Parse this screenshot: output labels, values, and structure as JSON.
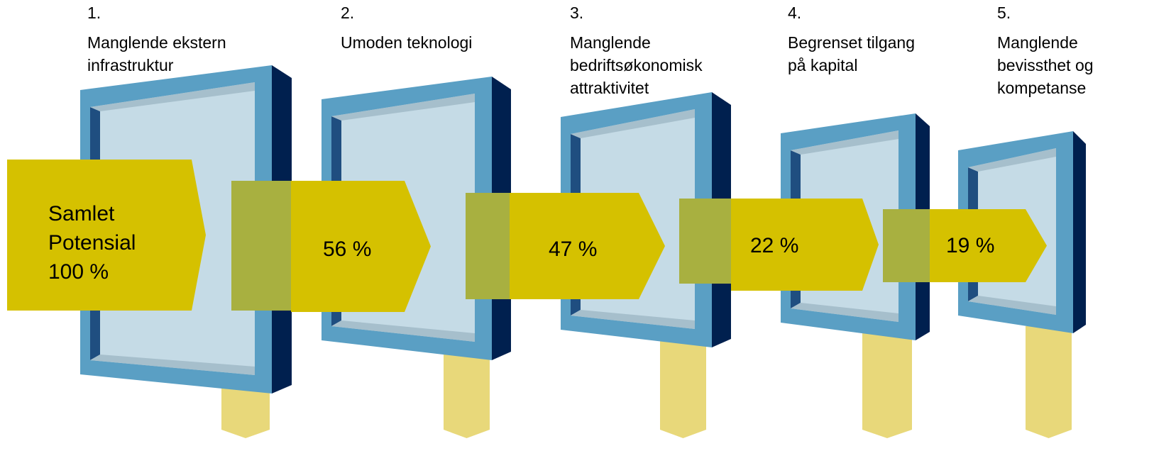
{
  "barriers": [
    {
      "number": "1.",
      "lines": [
        "Manglende ekstern",
        "infrastruktur"
      ]
    },
    {
      "number": "2.",
      "lines": [
        "Umoden teknologi"
      ]
    },
    {
      "number": "3.",
      "lines": [
        "Manglende",
        "bedriftsøkonomisk",
        "attraktivitet"
      ]
    },
    {
      "number": "4.",
      "lines": [
        "Begrenset tilgang",
        "på kapital"
      ]
    },
    {
      "number": "5.",
      "lines": [
        "Manglende",
        "bevissthet og",
        "kompetanse"
      ]
    }
  ],
  "flows": [
    {
      "lines": [
        "Samlet",
        "Potensial",
        "100 %"
      ]
    },
    {
      "lines": [
        "56 %"
      ]
    },
    {
      "lines": [
        "47 %"
      ]
    },
    {
      "lines": [
        "22 %"
      ]
    },
    {
      "lines": [
        "19 %"
      ]
    }
  ]
}
